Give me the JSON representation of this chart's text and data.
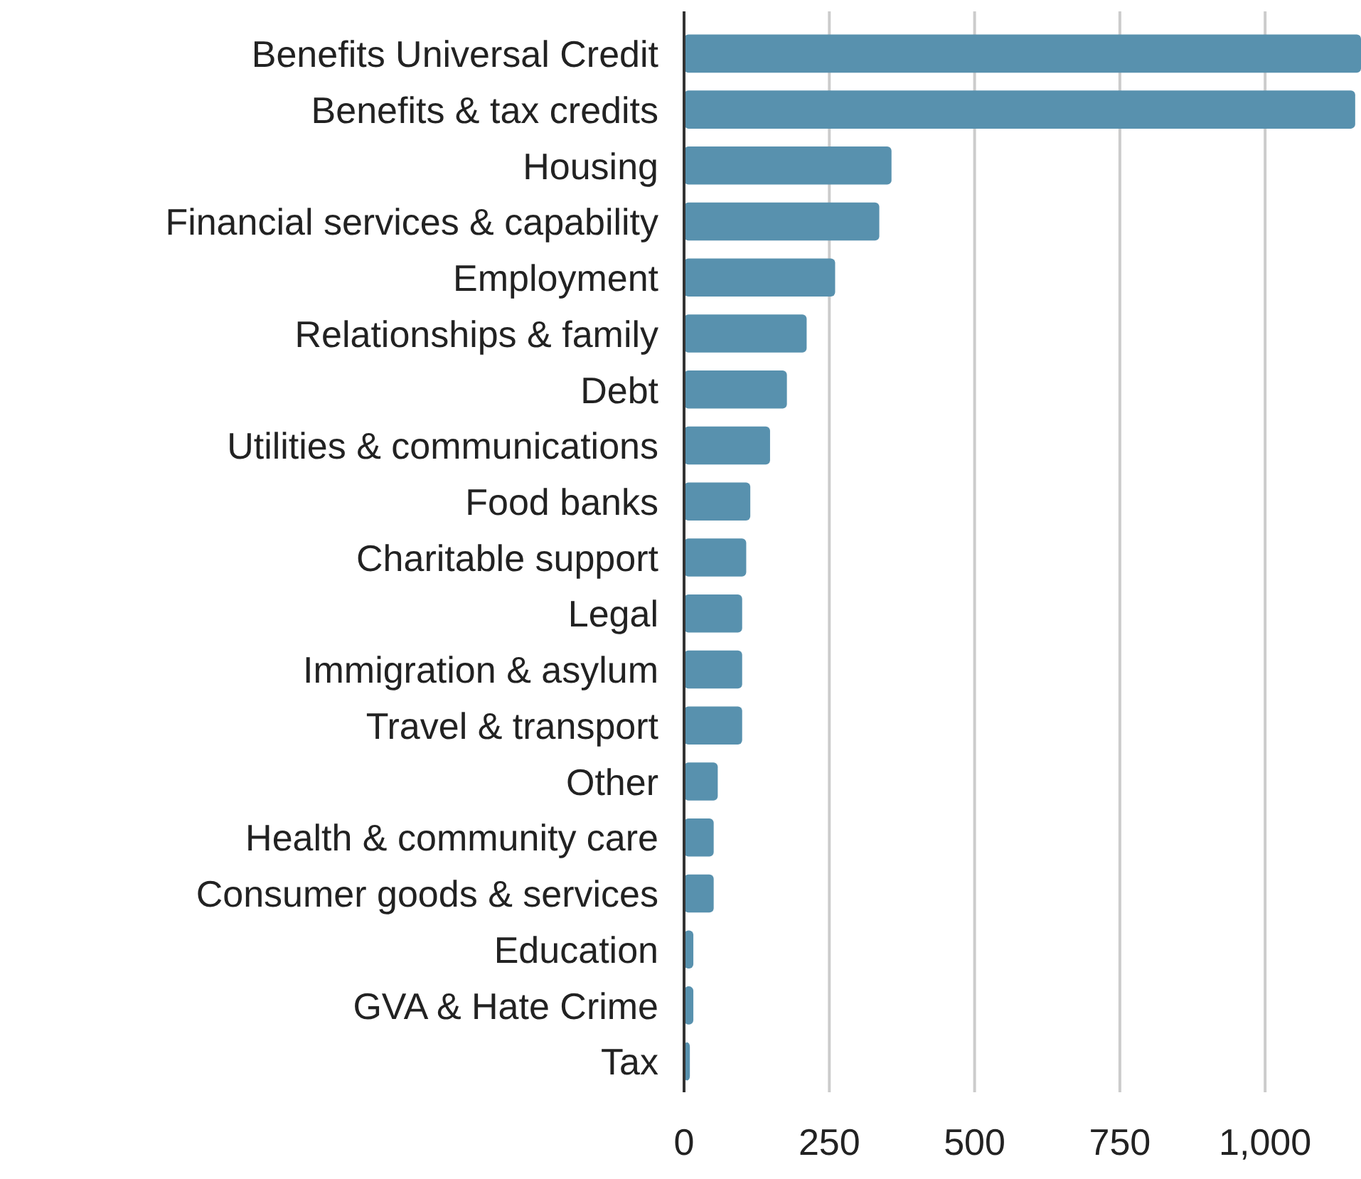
{
  "chart_data": {
    "type": "bar",
    "orientation": "horizontal",
    "categories": [
      "Benefits Universal Credit",
      "Benefits & tax credits",
      "Housing",
      "Financial services & capability",
      "Employment",
      "Relationships & family",
      "Debt",
      "Utilities & communications",
      "Food banks",
      "Charitable support",
      "Legal",
      "Immigration & asylum",
      "Travel & transport",
      "Other",
      "Health & community care",
      "Consumer goods & services",
      "Education",
      "GVA & Hate Crime",
      "Tax"
    ],
    "values": [
      1165,
      1155,
      357,
      336,
      260,
      211,
      177,
      148,
      114,
      107,
      100,
      100,
      100,
      58,
      51,
      51,
      16,
      16,
      10
    ],
    "color": "#5891ae",
    "xlim": [
      0,
      1165
    ],
    "xticks": [
      0,
      250,
      500,
      750,
      {
        "value": 1000,
        "label": "1,000"
      }
    ],
    "grid": "x"
  }
}
